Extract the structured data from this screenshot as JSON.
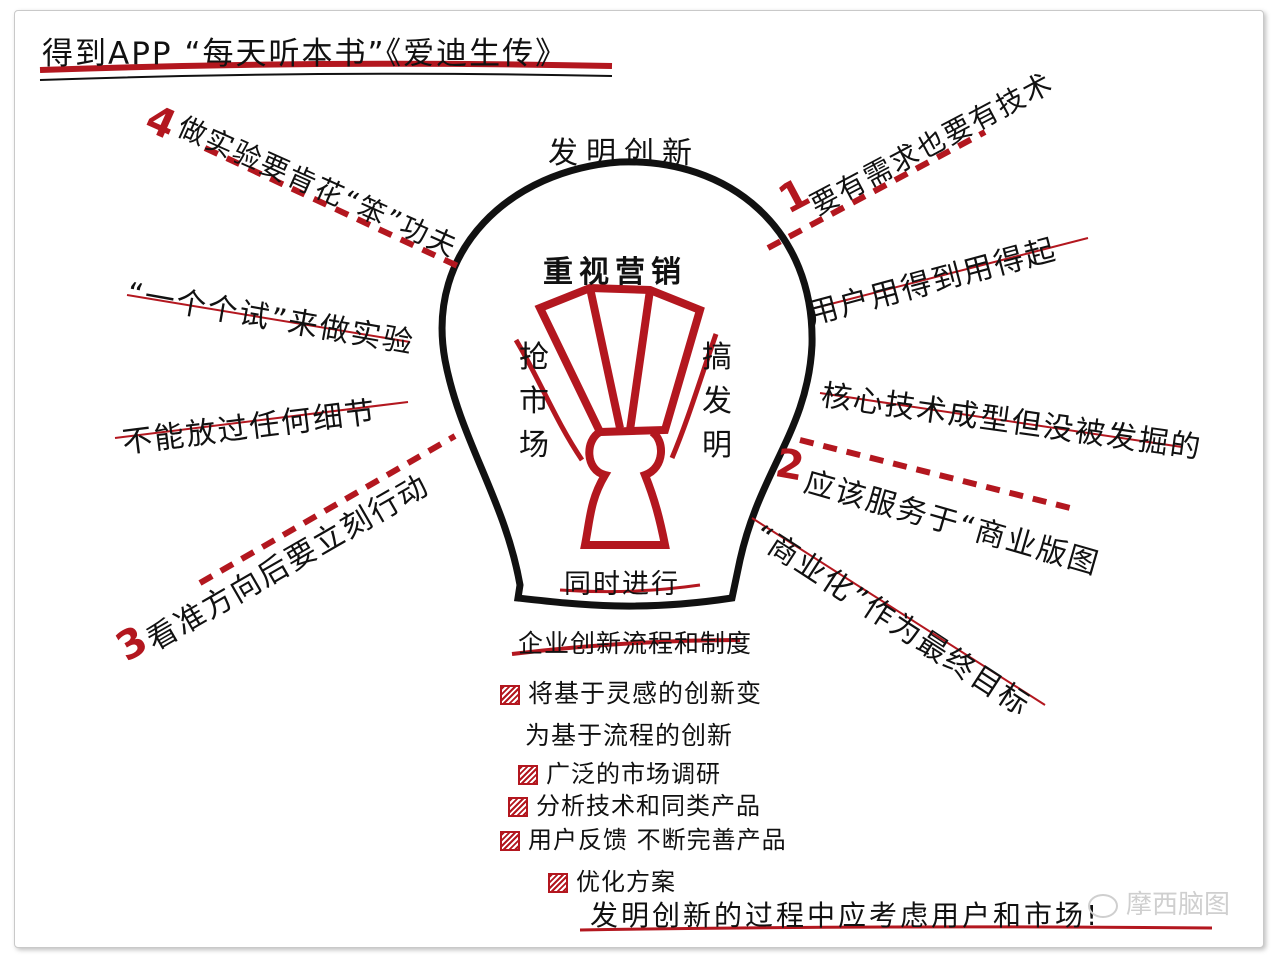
{
  "header": {
    "title": "得到APP “每天听本书”《爱迪生传》"
  },
  "center": {
    "top": "发明创新",
    "inner_top": "重视营销",
    "left_vertical": "抢市场",
    "right_vertical": "搞发明",
    "bottom": "同时进行"
  },
  "branches": {
    "b1": {
      "number": "1",
      "title": "要有需求也要有技术",
      "items": [
        "用户用得到用得起",
        "核心技术成型但没被发掘的"
      ]
    },
    "b2": {
      "number": "2",
      "title": "应该服务于“商业版图",
      "items": [
        "“商业化”作为最终目标"
      ]
    },
    "b3": {
      "number": "3",
      "title": "看准方向后要立刻行动",
      "items": [
        "不能放过任何细节",
        "“一个个试”来做实验"
      ]
    },
    "b4": {
      "number": "4",
      "title": "做实验要肯花“笨”功夫."
    }
  },
  "base": {
    "title": "企业创新流程和制度",
    "items": [
      "将基于灵感的创新变",
      "为基于流程的创新",
      "广泛的市场调研",
      "分析技术和同类产品",
      "用户反馈 不断完善产品",
      "优化方案"
    ]
  },
  "footer": {
    "text": "发明创新的过程中应考虑用户和市场!"
  },
  "watermark": {
    "text": "摩西脑图"
  },
  "colors": {
    "accent": "#b3171f",
    "ink": "#111111"
  }
}
